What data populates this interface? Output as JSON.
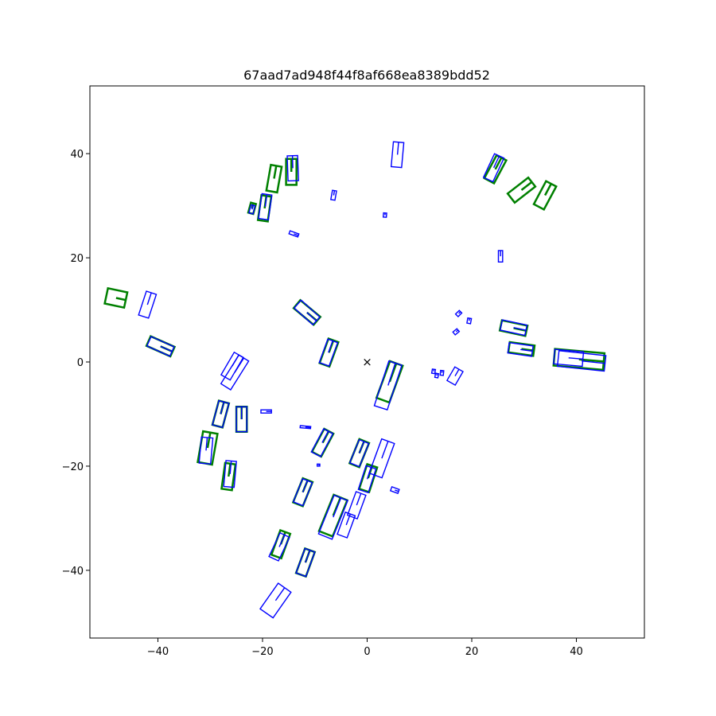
{
  "chart_data": {
    "type": "scatter",
    "title": "67aad7ad948f44f8af668ea8389bdd52",
    "xlabel": "",
    "ylabel": "",
    "xlim": [
      -53,
      53
    ],
    "ylim": [
      -53,
      53
    ],
    "x_ticks": [
      -40,
      -20,
      0,
      20,
      40
    ],
    "y_ticks": [
      -40,
      -20,
      0,
      20,
      40
    ],
    "x_tick_labels": [
      "−40",
      "−20",
      "0",
      "20",
      "40"
    ],
    "y_tick_labels": [
      "−40",
      "−20",
      "0",
      "20",
      "40"
    ],
    "grid": false,
    "legend": "none",
    "ego_marker": {
      "x": 0,
      "y": 0,
      "symbol": "×"
    },
    "series": [
      {
        "color": "#008000",
        "line_width": 2.5,
        "boxes": [
          {
            "cx": -14.5,
            "cy": 36.5,
            "w": 2.0,
            "l": 5.0,
            "yaw": 90
          },
          {
            "cx": -17.8,
            "cy": 35.2,
            "w": 2.1,
            "l": 5.0,
            "yaw": 80
          },
          {
            "cx": -19.6,
            "cy": 29.5,
            "w": 1.9,
            "l": 4.8,
            "yaw": 82
          },
          {
            "cx": -22.0,
            "cy": 29.5,
            "w": 1.0,
            "l": 2.0,
            "yaw": 75
          },
          {
            "cx": 24.5,
            "cy": 37.0,
            "w": 2.1,
            "l": 5.0,
            "yaw": 62
          },
          {
            "cx": 29.5,
            "cy": 33.0,
            "w": 2.2,
            "l": 5.0,
            "yaw": 38
          },
          {
            "cx": 34.0,
            "cy": 32.0,
            "w": 2.2,
            "l": 5.0,
            "yaw": 62
          },
          {
            "cx": -48.0,
            "cy": 12.3,
            "w": 3.0,
            "l": 3.8,
            "yaw": -12
          },
          {
            "cx": -39.5,
            "cy": 3.0,
            "w": 2.0,
            "l": 5.0,
            "yaw": -24
          },
          {
            "cx": -11.5,
            "cy": 9.5,
            "w": 2.0,
            "l": 5.0,
            "yaw": -40
          },
          {
            "cx": -7.3,
            "cy": 1.8,
            "w": 2.0,
            "l": 5.0,
            "yaw": 70
          },
          {
            "cx": 28.0,
            "cy": 6.5,
            "w": 2.0,
            "l": 5.0,
            "yaw": -12
          },
          {
            "cx": 29.5,
            "cy": 2.5,
            "w": 2.0,
            "l": 4.8,
            "yaw": -8
          },
          {
            "cx": 40.5,
            "cy": 0.5,
            "w": 3.2,
            "l": 9.5,
            "yaw": -5
          },
          {
            "cx": 4.3,
            "cy": -3.8,
            "w": 2.6,
            "l": 7.5,
            "yaw": 70
          },
          {
            "cx": -28.0,
            "cy": -10.0,
            "w": 2.0,
            "l": 4.8,
            "yaw": 75
          },
          {
            "cx": -24.0,
            "cy": -11.0,
            "w": 2.0,
            "l": 4.8,
            "yaw": 90
          },
          {
            "cx": -30.5,
            "cy": -16.5,
            "w": 2.8,
            "l": 6.0,
            "yaw": 80
          },
          {
            "cx": -26.5,
            "cy": -22.0,
            "w": 2.0,
            "l": 5.0,
            "yaw": 82
          },
          {
            "cx": -8.5,
            "cy": -15.5,
            "w": 2.0,
            "l": 5.0,
            "yaw": 62
          },
          {
            "cx": -1.5,
            "cy": -17.5,
            "w": 2.0,
            "l": 5.0,
            "yaw": 68
          },
          {
            "cx": 0.2,
            "cy": -22.3,
            "w": 2.0,
            "l": 5.0,
            "yaw": 72
          },
          {
            "cx": -12.3,
            "cy": -25.0,
            "w": 2.0,
            "l": 5.0,
            "yaw": 68
          },
          {
            "cx": -6.5,
            "cy": -29.5,
            "w": 2.8,
            "l": 7.5,
            "yaw": 68
          },
          {
            "cx": -16.5,
            "cy": -35.0,
            "w": 2.0,
            "l": 5.0,
            "yaw": 70
          },
          {
            "cx": -11.8,
            "cy": -38.5,
            "w": 2.0,
            "l": 5.0,
            "yaw": 70
          }
        ]
      },
      {
        "color": "#0000ff",
        "line_width": 1.4,
        "boxes": [
          {
            "cx": -14.2,
            "cy": 37.2,
            "w": 2.0,
            "l": 4.8,
            "yaw": 92
          },
          {
            "cx": -19.5,
            "cy": 29.8,
            "w": 1.9,
            "l": 4.8,
            "yaw": 82
          },
          {
            "cx": -22.0,
            "cy": 29.3,
            "w": 0.8,
            "l": 1.6,
            "yaw": 75
          },
          {
            "cx": -6.4,
            "cy": 32.0,
            "w": 0.8,
            "l": 1.8,
            "yaw": 80
          },
          {
            "cx": 5.8,
            "cy": 39.8,
            "w": 2.0,
            "l": 4.8,
            "yaw": 85
          },
          {
            "cx": 3.4,
            "cy": 28.2,
            "w": 0.6,
            "l": 0.8,
            "yaw": 85
          },
          {
            "cx": -14.0,
            "cy": 24.6,
            "w": 0.6,
            "l": 1.8,
            "yaw": -20
          },
          {
            "cx": 25.5,
            "cy": 20.3,
            "w": 0.8,
            "l": 2.2,
            "yaw": 90
          },
          {
            "cx": 24.2,
            "cy": 37.3,
            "w": 2.0,
            "l": 5.0,
            "yaw": 65
          },
          {
            "cx": -42.0,
            "cy": 11.0,
            "w": 2.0,
            "l": 4.8,
            "yaw": 72
          },
          {
            "cx": -39.5,
            "cy": 3.0,
            "w": 2.0,
            "l": 4.8,
            "yaw": -24
          },
          {
            "cx": -11.5,
            "cy": 9.5,
            "w": 2.0,
            "l": 4.8,
            "yaw": -42
          },
          {
            "cx": -7.4,
            "cy": 1.8,
            "w": 2.0,
            "l": 4.8,
            "yaw": 70
          },
          {
            "cx": -25.8,
            "cy": -0.8,
            "w": 2.0,
            "l": 5.0,
            "yaw": 60
          },
          {
            "cx": -25.3,
            "cy": -2.0,
            "w": 2.2,
            "l": 6.5,
            "yaw": 58
          },
          {
            "cx": 17.5,
            "cy": 9.3,
            "w": 0.7,
            "l": 1.0,
            "yaw": 45
          },
          {
            "cx": 19.5,
            "cy": 7.9,
            "w": 0.7,
            "l": 1.0,
            "yaw": 80
          },
          {
            "cx": 17.0,
            "cy": 5.8,
            "w": 0.7,
            "l": 1.0,
            "yaw": 40
          },
          {
            "cx": 28.0,
            "cy": 6.6,
            "w": 2.0,
            "l": 4.8,
            "yaw": -12
          },
          {
            "cx": 29.3,
            "cy": 2.4,
            "w": 2.0,
            "l": 4.6,
            "yaw": -8
          },
          {
            "cx": 38.5,
            "cy": 0.8,
            "w": 2.8,
            "l": 5.5,
            "yaw": -5
          },
          {
            "cx": 41.0,
            "cy": 0.2,
            "w": 3.0,
            "l": 9.0,
            "yaw": -6
          },
          {
            "cx": 4.0,
            "cy": -4.5,
            "w": 2.6,
            "l": 9.0,
            "yaw": 72
          },
          {
            "cx": 12.7,
            "cy": -1.8,
            "w": 0.6,
            "l": 0.8,
            "yaw": 80
          },
          {
            "cx": 13.3,
            "cy": -2.6,
            "w": 0.6,
            "l": 0.8,
            "yaw": 80
          },
          {
            "cx": 14.3,
            "cy": -2.1,
            "w": 0.6,
            "l": 0.9,
            "yaw": 85
          },
          {
            "cx": 16.8,
            "cy": -2.7,
            "w": 1.8,
            "l": 3.0,
            "yaw": 60
          },
          {
            "cx": -28.0,
            "cy": -10.0,
            "w": 2.0,
            "l": 4.8,
            "yaw": 75
          },
          {
            "cx": -24.0,
            "cy": -11.0,
            "w": 2.0,
            "l": 4.8,
            "yaw": 90
          },
          {
            "cx": -19.3,
            "cy": -9.5,
            "w": 0.6,
            "l": 2.0,
            "yaw": 0
          },
          {
            "cx": -11.8,
            "cy": -12.5,
            "w": 0.4,
            "l": 2.0,
            "yaw": -5
          },
          {
            "cx": -30.8,
            "cy": -17.0,
            "w": 2.2,
            "l": 5.0,
            "yaw": 85
          },
          {
            "cx": -26.2,
            "cy": -21.5,
            "w": 2.0,
            "l": 5.0,
            "yaw": 85
          },
          {
            "cx": -8.6,
            "cy": -15.5,
            "w": 2.0,
            "l": 5.0,
            "yaw": 62
          },
          {
            "cx": -1.5,
            "cy": -17.5,
            "w": 2.0,
            "l": 4.8,
            "yaw": 68
          },
          {
            "cx": 2.8,
            "cy": -18.5,
            "w": 2.6,
            "l": 7.0,
            "yaw": 70
          },
          {
            "cx": -9.3,
            "cy": -19.8,
            "w": 0.4,
            "l": 0.5,
            "yaw": 0
          },
          {
            "cx": 0.0,
            "cy": -22.5,
            "w": 2.0,
            "l": 4.8,
            "yaw": 72
          },
          {
            "cx": 5.3,
            "cy": -24.6,
            "w": 0.8,
            "l": 1.5,
            "yaw": -20
          },
          {
            "cx": -12.3,
            "cy": -25.0,
            "w": 2.0,
            "l": 4.8,
            "yaw": 68
          },
          {
            "cx": -2.0,
            "cy": -27.5,
            "w": 2.0,
            "l": 4.8,
            "yaw": 70
          },
          {
            "cx": -6.5,
            "cy": -29.8,
            "w": 2.8,
            "l": 8.0,
            "yaw": 68
          },
          {
            "cx": -4.0,
            "cy": -31.3,
            "w": 2.0,
            "l": 4.5,
            "yaw": 70
          },
          {
            "cx": -16.8,
            "cy": -35.5,
            "w": 2.0,
            "l": 5.0,
            "yaw": 65
          },
          {
            "cx": -11.8,
            "cy": -38.5,
            "w": 2.0,
            "l": 5.0,
            "yaw": 70
          },
          {
            "cx": -17.5,
            "cy": -45.8,
            "w": 3.0,
            "l": 6.0,
            "yaw": 55
          }
        ]
      }
    ]
  }
}
